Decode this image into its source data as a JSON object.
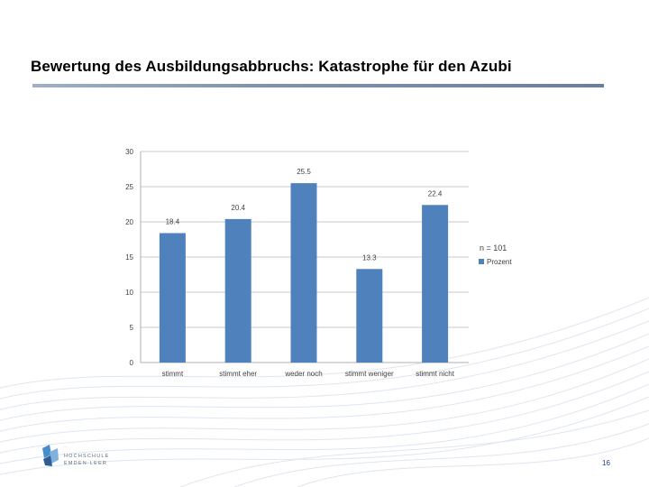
{
  "slide": {
    "title": "Bewertung des Ausbildungsabbruchs: Katastrophe für den Azubi",
    "page_number": "16",
    "logo": {
      "tagline": "...",
      "line1": "HOCHSCHULE",
      "line2": "EMDEN·LEER"
    }
  },
  "chart_data": {
    "type": "bar",
    "categories": [
      "stimmt",
      "stimmt eher",
      "weder noch",
      "stimmt weniger",
      "stimmt nicht"
    ],
    "series": [
      {
        "name": "Prozent",
        "values": [
          18.4,
          20.4,
          25.5,
          13.3,
          22.4
        ]
      }
    ],
    "value_labels": [
      "18.4",
      "20.4",
      "25.5",
      "13.3",
      "22.4"
    ],
    "y_ticks": [
      0,
      5,
      10,
      15,
      20,
      25,
      30
    ],
    "ylim": [
      0,
      30
    ],
    "grid": true,
    "legend_title": "n = 101",
    "legend_position": "right",
    "bar_color": "#4f81bd"
  }
}
